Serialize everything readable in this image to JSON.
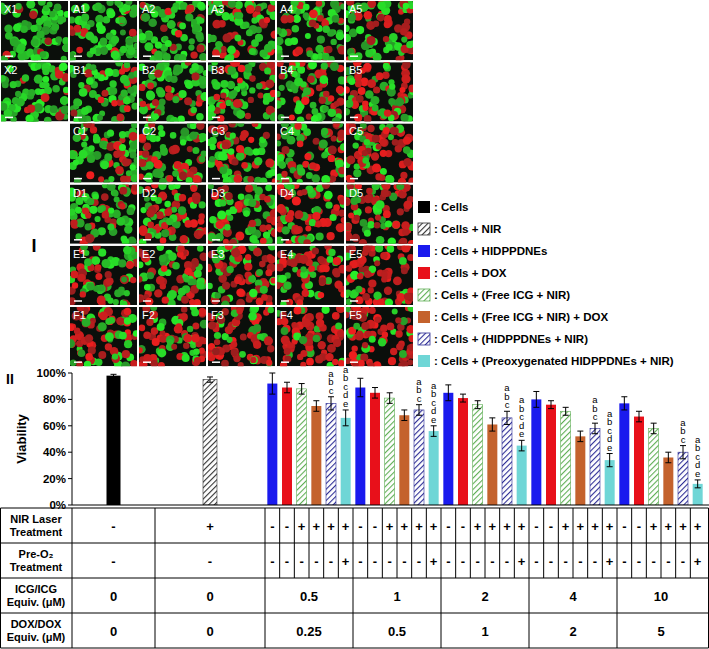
{
  "chart_data": {
    "type": "bar",
    "y_label": "Viability",
    "categories": [
      null,
      null,
      null,
      null,
      null,
      null,
      null
    ],
    "ylim": [
      0,
      100
    ],
    "yticks": [
      {
        "value": 0,
        "label": "0%"
      },
      {
        "value": 20,
        "label": "20%"
      },
      {
        "value": 40,
        "label": "40%"
      },
      {
        "value": 60,
        "label": "60%"
      },
      {
        "value": 80,
        "label": "80%"
      },
      {
        "value": 100,
        "label": "100%"
      }
    ],
    "legend": "right",
    "grid": false,
    "series": [
      {
        "name": ": Cells",
        "color": "#000000",
        "values": [
          98,
          null,
          null,
          null,
          null,
          null,
          null
        ],
        "errors": [
          1,
          null,
          null,
          null,
          null,
          null,
          null
        ]
      },
      {
        "name": ": Cells + NIR",
        "color": "#333333",
        "line_style": "hatched",
        "values": [
          null,
          95,
          null,
          null,
          null,
          null,
          null
        ],
        "errors": [
          null,
          2,
          null,
          null,
          null,
          null,
          null
        ]
      },
      {
        "name": ": Cells + HIDPPDNEs",
        "color": "#1a1aee",
        "values": [
          null,
          null,
          92,
          89,
          85,
          80,
          77
        ],
        "errors": [
          null,
          null,
          8,
          7,
          6,
          6,
          5
        ]
      },
      {
        "name": ": Cells + DOX",
        "color": "#e8101a",
        "values": [
          null,
          null,
          89,
          85,
          81,
          76,
          67
        ],
        "errors": [
          null,
          null,
          4,
          4,
          3,
          3,
          4
        ]
      },
      {
        "name": ": Cells + (Free ICG + NIR)",
        "color": "#5fae55",
        "line_style": "hatched",
        "values": [
          null,
          null,
          88,
          81,
          76,
          71,
          58
        ],
        "errors": [
          null,
          null,
          4,
          4,
          3,
          3,
          4
        ]
      },
      {
        "name": ": Cells + (Free ICG + NIR) + DOX",
        "color": "#c4622d",
        "values": [
          null,
          null,
          75,
          68,
          61,
          52,
          36
        ],
        "errors": [
          null,
          null,
          4,
          4,
          5,
          4,
          4
        ]
      },
      {
        "name": ": Cells + (HIDPPDNEs + NIR)",
        "color": "#2e2e96",
        "line_style": "hatched",
        "values": [
          null,
          null,
          77,
          72,
          66,
          58,
          40
        ],
        "errors": [
          null,
          null,
          5,
          4,
          5,
          4,
          5
        ],
        "significance": [
          null,
          null,
          [
            "a",
            "b",
            "c"
          ],
          [
            "a",
            "b",
            "c"
          ],
          [
            "a",
            "b",
            "c"
          ],
          [
            "a",
            "b",
            "c"
          ],
          [
            "a",
            "b",
            "c"
          ]
        ]
      },
      {
        "name": ": Cells  + (Preoxygenated HIDPPDNEs + NIR)",
        "color": "#6fd6d6",
        "values": [
          null,
          null,
          66,
          56,
          45,
          34,
          16
        ],
        "errors": [
          null,
          null,
          6,
          4,
          4,
          5,
          3
        ],
        "significance": [
          null,
          null,
          [
            "a",
            "b",
            "c",
            "d",
            "e"
          ],
          [
            "a",
            "b",
            "c",
            "d",
            "e"
          ],
          [
            "a",
            "b",
            "c",
            "d",
            "e"
          ],
          [
            "a",
            "b",
            "c",
            "d",
            "e"
          ],
          [
            "a",
            "b",
            "c",
            "d",
            "e"
          ]
        ]
      }
    ]
  },
  "panel_labels": [
    "I",
    "II"
  ],
  "micrographs": [
    [
      "X1",
      "A1",
      "A2",
      "A3",
      "A4",
      "A5"
    ],
    [
      "X2",
      "B1",
      "B2",
      "B3",
      "B4",
      "B5"
    ],
    [
      "C1",
      "C2",
      "C3",
      "C4",
      "C5"
    ],
    [
      "D1",
      "D2",
      "D3",
      "D4",
      "D5"
    ],
    [
      "E1",
      "E2",
      "E3",
      "E4",
      "E5"
    ],
    [
      "F1",
      "F2",
      "F3",
      "F4",
      "F5"
    ]
  ],
  "table": {
    "rows": [
      {
        "label": "NIR Laser Treatment",
        "cells": [
          [
            "-"
          ],
          [
            "+"
          ],
          [
            "-",
            "-",
            "+",
            "+",
            "+",
            "+"
          ],
          [
            "-",
            "-",
            "+",
            "+",
            "+",
            "+"
          ],
          [
            "-",
            "-",
            "+",
            "+",
            "+",
            "+"
          ],
          [
            "-",
            "-",
            "+",
            "+",
            "+",
            "+"
          ],
          [
            "-",
            "-",
            "+",
            "+",
            "+",
            "+"
          ]
        ]
      },
      {
        "label": "Pre-O₂ Treatment",
        "cells": [
          [
            "-"
          ],
          [
            "-"
          ],
          [
            "-",
            "-",
            "-",
            "-",
            "-",
            "+"
          ],
          [
            "-",
            "-",
            "-",
            "-",
            "-",
            "+"
          ],
          [
            "-",
            "-",
            "-",
            "-",
            "-",
            "+"
          ],
          [
            "-",
            "-",
            "-",
            "-",
            "-",
            "+"
          ],
          [
            "-",
            "-",
            "-",
            "-",
            "-",
            "+"
          ]
        ]
      },
      {
        "label": "ICG/ICG Equiv. (μM)",
        "cells": [
          0,
          0,
          0.5,
          1,
          2,
          4,
          10
        ]
      },
      {
        "label": "DOX/DOX Equiv. (μM)",
        "cells": [
          0,
          0,
          0.25,
          0.5,
          1,
          2,
          5
        ]
      }
    ]
  }
}
